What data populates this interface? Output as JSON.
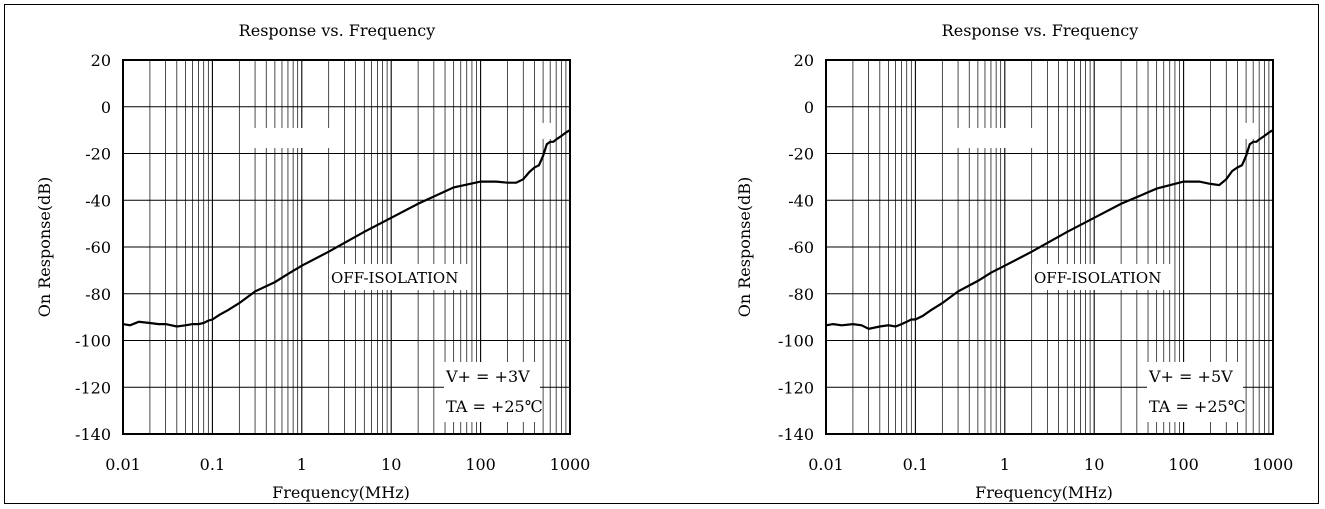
{
  "chart_data": [
    {
      "type": "line",
      "title": "Response vs. Frequency",
      "xlabel": "Frequency(MHz)",
      "ylabel": "On Response(dB)",
      "x_scale": "log",
      "xlim": [
        0.01,
        1000
      ],
      "ylim": [
        -140,
        20
      ],
      "x_ticks": [
        "0.01",
        "0.1",
        "1",
        "10",
        "100",
        "1000"
      ],
      "y_ticks": [
        "20",
        "0",
        "-20",
        "-40",
        "-60",
        "-80",
        "-100",
        "-120",
        "-140"
      ],
      "grid": true,
      "curve_label": "OFF-ISOLATION",
      "conditions": [
        "V+ = +3V",
        "TA = +25℃"
      ],
      "series": [
        {
          "x": [
            0.01,
            0.012,
            0.015,
            0.02,
            0.025,
            0.03,
            0.04,
            0.05,
            0.06,
            0.07,
            0.08,
            0.09,
            0.1,
            0.12,
            0.15,
            0.2,
            0.3,
            0.5,
            0.7,
            1,
            2,
            5,
            10,
            20,
            50,
            100,
            150,
            200,
            250,
            300,
            350,
            400,
            450,
            500,
            550,
            600,
            650,
            700,
            800,
            900,
            1000
          ],
          "y": [
            -93,
            -93.5,
            -92,
            -92.5,
            -93,
            -93,
            -94,
            -93.5,
            -93,
            -93,
            -92.5,
            -91.5,
            -91,
            -89,
            -87,
            -84,
            -79,
            -75,
            -71.5,
            -68,
            -62,
            -53.5,
            -47.5,
            -41.5,
            -34.5,
            -32,
            -32,
            -32.5,
            -32.5,
            -31,
            -28,
            -26,
            -25,
            -21,
            -16,
            -15,
            -15,
            -14,
            -12.5,
            -11,
            -10
          ]
        }
      ]
    },
    {
      "type": "line",
      "title": "Response vs. Frequency",
      "xlabel": "Frequency(MHz)",
      "ylabel": "On Response(dB)",
      "x_scale": "log",
      "xlim": [
        0.01,
        1000
      ],
      "ylim": [
        -140,
        20
      ],
      "x_ticks": [
        "0.01",
        "0.1",
        "1",
        "10",
        "100",
        "1000"
      ],
      "y_ticks": [
        "20",
        "0",
        "-20",
        "-40",
        "-60",
        "-80",
        "-100",
        "-120",
        "-140"
      ],
      "grid": true,
      "curve_label": "OFF-ISOLATION",
      "conditions": [
        "V+ = +5V",
        "TA = +25℃"
      ],
      "series": [
        {
          "x": [
            0.01,
            0.012,
            0.015,
            0.02,
            0.025,
            0.03,
            0.04,
            0.05,
            0.06,
            0.07,
            0.08,
            0.09,
            0.1,
            0.12,
            0.15,
            0.2,
            0.3,
            0.5,
            0.7,
            1,
            2,
            5,
            10,
            20,
            50,
            100,
            150,
            200,
            250,
            300,
            350,
            400,
            450,
            500,
            550,
            600,
            650,
            700,
            800,
            900,
            1000
          ],
          "y": [
            -93.5,
            -93,
            -93.5,
            -93,
            -93.5,
            -95,
            -94,
            -93.5,
            -94,
            -93,
            -92,
            -91,
            -91,
            -89.5,
            -87,
            -84,
            -79,
            -74.5,
            -71,
            -68,
            -62,
            -53.5,
            -47.5,
            -41.5,
            -35,
            -32,
            -32,
            -33,
            -33.5,
            -31,
            -27.5,
            -26,
            -25,
            -21,
            -16,
            -15,
            -15,
            -14,
            -12.5,
            -11,
            -10
          ]
        }
      ]
    }
  ]
}
